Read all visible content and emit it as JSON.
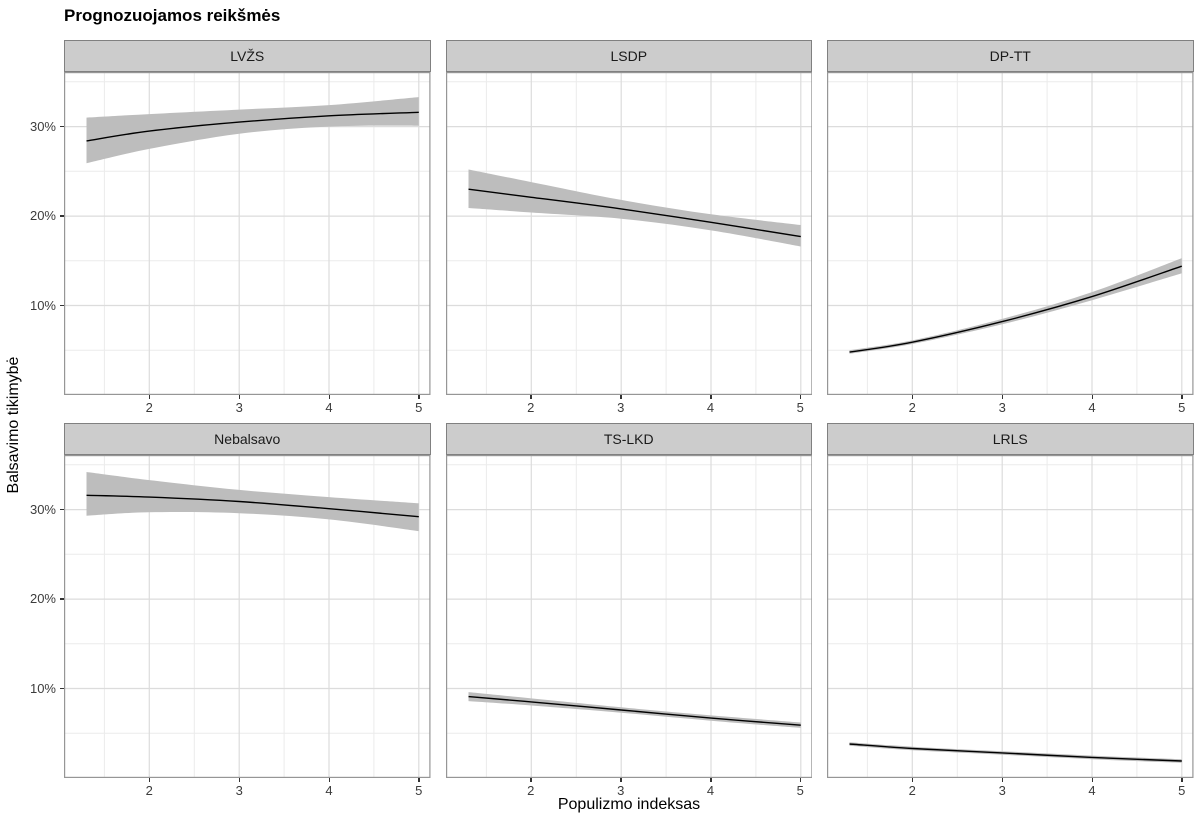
{
  "chart_data": {
    "type": "line",
    "title": "Prognozuojamos reikšmės",
    "xlabel": "Populizmo indeksas",
    "ylabel": "Balsavimo tikimybė",
    "x_ticks": [
      2,
      3,
      4,
      5
    ],
    "x_tick_labels": [
      "2",
      "3",
      "4",
      "5"
    ],
    "x_minor_ticks": [
      1.5,
      2.5,
      3.5,
      4.5
    ],
    "y_ticks": [
      10,
      20,
      30
    ],
    "y_tick_labels": [
      "10%",
      "20%",
      "30%"
    ],
    "y_minor_ticks": [
      5,
      15,
      25,
      35
    ],
    "xlim": [
      1.05,
      5.13
    ],
    "ylim": [
      0,
      36.1
    ],
    "grid": "major and minor, light grey on white panels",
    "legend": "none",
    "facet_layout": {
      "rows": 2,
      "cols": 3
    },
    "x": [
      1.3,
      2,
      3,
      4,
      5
    ],
    "facets": [
      {
        "label": "LVŽS",
        "y": [
          28.4,
          29.5,
          30.5,
          31.2,
          31.6
        ],
        "lower": [
          25.9,
          27.5,
          29.2,
          30.0,
          30.1
        ],
        "upper": [
          31.0,
          31.4,
          31.9,
          32.4,
          33.3
        ]
      },
      {
        "label": "LSDP",
        "y": [
          23.0,
          22.1,
          20.8,
          19.3,
          17.7
        ],
        "lower": [
          20.9,
          20.4,
          19.7,
          18.4,
          16.6
        ],
        "upper": [
          25.2,
          23.8,
          21.8,
          20.2,
          19.0
        ]
      },
      {
        "label": "DP-TT",
        "y": [
          4.8,
          5.9,
          8.2,
          11.0,
          14.4
        ],
        "lower": [
          4.6,
          5.7,
          7.9,
          10.6,
          13.6
        ],
        "upper": [
          5.0,
          6.1,
          8.5,
          11.5,
          15.3
        ]
      },
      {
        "label": "Nebalsavo",
        "y": [
          31.6,
          31.4,
          30.9,
          30.1,
          29.2
        ],
        "lower": [
          29.3,
          29.7,
          29.6,
          28.9,
          27.6
        ],
        "upper": [
          34.2,
          33.3,
          32.2,
          31.4,
          30.7
        ]
      },
      {
        "label": "TS-LKD",
        "y": [
          9.1,
          8.5,
          7.6,
          6.7,
          5.9
        ],
        "lower": [
          8.6,
          8.1,
          7.3,
          6.4,
          5.6
        ],
        "upper": [
          9.6,
          8.9,
          7.9,
          7.0,
          6.2
        ]
      },
      {
        "label": "LRLS",
        "y": [
          3.8,
          3.3,
          2.8,
          2.3,
          1.9
        ],
        "lower": [
          3.6,
          3.1,
          2.6,
          2.1,
          1.7
        ],
        "upper": [
          4.0,
          3.5,
          3.0,
          2.5,
          2.1
        ]
      }
    ]
  },
  "colors": {
    "background": "#ffffff",
    "panel_background": "#ffffff",
    "panel_border": "#969696",
    "grid_major": "#dcdcdc",
    "grid_minor": "#ebebeb",
    "strip_fill": "#cccccc",
    "strip_border": "#808080",
    "ribbon": "#bdbdbd",
    "line": "#000000",
    "tick_mark": "#333333",
    "tick_text": "#3c3c3c",
    "title_text": "#000000"
  }
}
